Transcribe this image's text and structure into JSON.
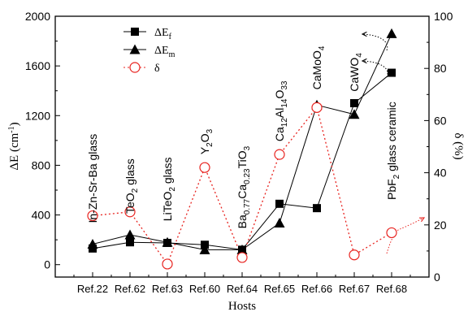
{
  "chart_data": {
    "type": "line",
    "x_title": "Hosts",
    "y_left_label": {
      "pre": "ΔE (cm",
      "sup": "-1",
      "post": ")"
    },
    "y_right_label": {
      "text": "δ (%)"
    },
    "categories": [
      "Ref.22",
      "Ref.62",
      "Ref.63",
      "Ref.60",
      "Ref.64",
      "Ref.65",
      "Ref.66",
      "Ref.67",
      "Ref.68"
    ],
    "ylim_left": [
      -100,
      2000
    ],
    "ylim_right": [
      0,
      100
    ],
    "yticks_left": [
      "0",
      "400",
      "800",
      "1200",
      "1600",
      "2000"
    ],
    "yticks_right": [
      "0",
      "20",
      "40",
      "60",
      "80",
      "100"
    ],
    "series": [
      {
        "key": "Ef",
        "axis": "left",
        "marker": "square",
        "color": "#000000",
        "dashed": false,
        "values": [
          130,
          180,
          175,
          160,
          120,
          490,
          455,
          1300,
          1545
        ]
      },
      {
        "key": "Em",
        "axis": "left",
        "marker": "triangle",
        "color": "#000000",
        "dashed": false,
        "values": [
          165,
          240,
          180,
          120,
          120,
          335,
          1285,
          1210,
          1860
        ]
      },
      {
        "key": "delta",
        "axis": "right",
        "marker": "circle-open",
        "color": "#e8231f",
        "dashed": true,
        "values": [
          23.5,
          25,
          5,
          42,
          7.5,
          47,
          65,
          8.5,
          17
        ]
      }
    ],
    "legend": {
      "placement": "top-left",
      "entries": [
        {
          "key": "Ef",
          "main": "ΔE",
          "sub": "f"
        },
        {
          "key": "Em",
          "main": "ΔE",
          "sub": "m"
        },
        {
          "key": "delta",
          "main": "δ",
          "sub": ""
        }
      ]
    },
    "host_labels": [
      {
        "cat": 0,
        "parts": [
          [
            "In-Zn-Sr-Ba glass",
            ""
          ]
        ]
      },
      {
        "cat": 1,
        "parts": [
          [
            "TeO",
            ""
          ],
          [
            "2",
            "sub"
          ],
          [
            " glass",
            ""
          ]
        ]
      },
      {
        "cat": 2,
        "parts": [
          [
            "LiTeO",
            ""
          ],
          [
            "2",
            "sub"
          ],
          [
            " glass",
            ""
          ]
        ]
      },
      {
        "cat": 3,
        "parts": [
          [
            "Y",
            ""
          ],
          [
            "2",
            "sub"
          ],
          [
            "O",
            ""
          ],
          [
            "3",
            "sub"
          ]
        ]
      },
      {
        "cat": 4,
        "parts": [
          [
            "Ba",
            ""
          ],
          [
            "0.77",
            "sub"
          ],
          [
            "Ca",
            ""
          ],
          [
            "0.23",
            "sub"
          ],
          [
            "TiO",
            ""
          ],
          [
            "3",
            "sub"
          ]
        ]
      },
      {
        "cat": 5,
        "parts": [
          [
            "Ca",
            ""
          ],
          [
            "12",
            "sub"
          ],
          [
            "Al",
            ""
          ],
          [
            "14",
            "sub"
          ],
          [
            "O",
            ""
          ],
          [
            "33",
            "sub"
          ]
        ]
      },
      {
        "cat": 6,
        "parts": [
          [
            "CaMoO",
            ""
          ],
          [
            "4",
            "sub"
          ]
        ]
      },
      {
        "cat": 7,
        "parts": [
          [
            "CaWO",
            ""
          ],
          [
            "4",
            "sub"
          ]
        ]
      },
      {
        "cat": 8,
        "parts": [
          [
            "PbF",
            ""
          ],
          [
            "2",
            "sub"
          ],
          [
            " glass ceramic",
            ""
          ]
        ]
      }
    ],
    "colors": {
      "axis": "#000000",
      "delta": "#e8231f"
    }
  }
}
